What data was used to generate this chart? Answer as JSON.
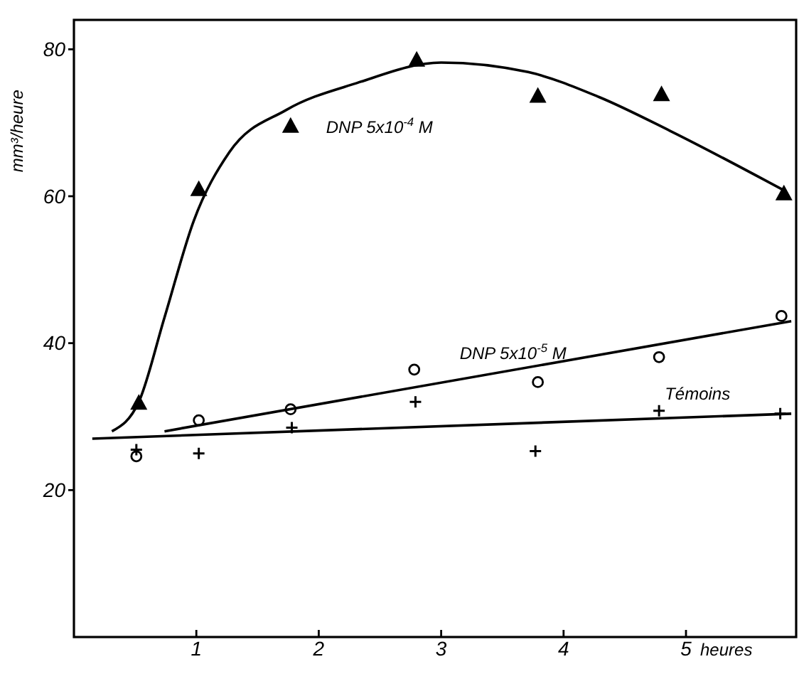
{
  "chart_data": {
    "type": "scatter",
    "xlabel": "heures",
    "ylabel": "mm³/heure",
    "xlim": [
      0,
      5.9
    ],
    "ylim": [
      0,
      84
    ],
    "xticks": [
      1,
      2,
      3,
      4,
      5
    ],
    "yticks": [
      20,
      40,
      60,
      80
    ],
    "grid": false,
    "series": [
      {
        "name": "DNP 5x10$^{-4}$ M",
        "color": "#000000",
        "marker": "triangle",
        "x": [
          0.53,
          1.02,
          1.77,
          2.8,
          3.79,
          4.8,
          5.8
        ],
        "values": [
          31.9,
          61,
          69.6,
          78.6,
          73.7,
          73.9,
          60.4
        ]
      },
      {
        "name": "DNP 5x10$^{-5}$ M",
        "color": "#000000",
        "marker": "circle",
        "x": [
          0.51,
          1.02,
          1.77,
          2.78,
          3.79,
          4.78,
          5.78
        ],
        "values": [
          24.6,
          29.5,
          31,
          36.4,
          34.7,
          38.1,
          43.7
        ]
      },
      {
        "name": "Témoins",
        "color": "#000000",
        "marker": "cross",
        "x": [
          0.51,
          1.02,
          1.78,
          2.79,
          3.77,
          4.78,
          5.77
        ],
        "values": [
          25.5,
          25,
          28.5,
          32,
          25.3,
          30.8,
          30.4
        ]
      },
      {
        "type": "line",
        "color": "#000000",
        "marker": "none",
        "line_style": "solid",
        "x": [
          0.31,
          0.53,
          0.74,
          0.98,
          1.27,
          1.73,
          2.31,
          3.0,
          3.71,
          4.29,
          4.87,
          5.8
        ],
        "values": [
          28,
          32,
          43.5,
          56.7,
          66,
          71.7,
          75.4,
          78.2,
          76.9,
          73.5,
          68.9,
          60.8
        ]
      },
      {
        "type": "line",
        "color": "#000000",
        "marker": "none",
        "line_style": "solid",
        "x": [
          0.74,
          5.86
        ],
        "values": [
          28,
          43
        ]
      },
      {
        "type": "line",
        "color": "#000000",
        "marker": "none",
        "line_style": "solid",
        "x": [
          0.15,
          5.86
        ],
        "values": [
          27,
          30.4
        ]
      }
    ]
  }
}
